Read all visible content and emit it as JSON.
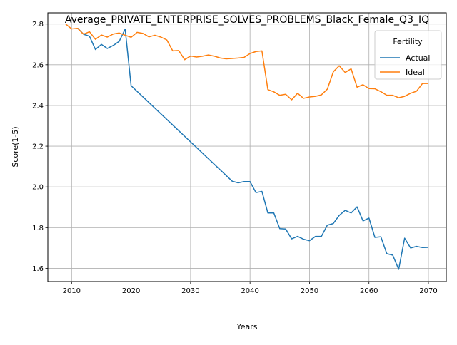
{
  "chart_data": {
    "type": "line",
    "title": "Average_PRIVATE_ENTERPRISE_SOLVES_PROBLEMS_Black_Female_Q3_IQ",
    "xlabel": "Years",
    "ylabel": "Score(1-5)",
    "xlim": [
      2006,
      2073
    ],
    "ylim": [
      1.535,
      2.855
    ],
    "xticks": [
      2010,
      2020,
      2030,
      2040,
      2050,
      2060,
      2070
    ],
    "yticks": [
      1.6,
      1.8,
      2.0,
      2.2,
      2.4,
      2.6,
      2.8
    ],
    "grid": true,
    "legend": {
      "title": "Fertility",
      "placement": "top-right"
    },
    "series": [
      {
        "name": "Actual",
        "color": "#1f77b4",
        "points": [
          [
            2011,
            2.78
          ],
          [
            2012,
            2.75
          ],
          [
            2013,
            2.74
          ],
          [
            2014,
            2.675
          ],
          [
            2015,
            2.7
          ],
          [
            2016,
            2.68
          ],
          [
            2017,
            2.695
          ],
          [
            2018,
            2.715
          ],
          [
            2019,
            2.775
          ],
          [
            2020,
            2.497
          ],
          [
            2037,
            2.028
          ],
          [
            2038,
            2.02
          ],
          [
            2039,
            2.026
          ],
          [
            2040,
            2.026
          ],
          [
            2041,
            1.972
          ],
          [
            2042,
            1.978
          ],
          [
            2043,
            1.872
          ],
          [
            2044,
            1.872
          ],
          [
            2045,
            1.795
          ],
          [
            2046,
            1.793
          ],
          [
            2047,
            1.745
          ],
          [
            2048,
            1.757
          ],
          [
            2049,
            1.743
          ],
          [
            2050,
            1.736
          ],
          [
            2051,
            1.757
          ],
          [
            2052,
            1.757
          ],
          [
            2053,
            1.812
          ],
          [
            2054,
            1.82
          ],
          [
            2055,
            1.86
          ],
          [
            2056,
            1.885
          ],
          [
            2057,
            1.872
          ],
          [
            2058,
            1.902
          ],
          [
            2059,
            1.833
          ],
          [
            2060,
            1.847
          ],
          [
            2061,
            1.752
          ],
          [
            2062,
            1.755
          ],
          [
            2063,
            1.672
          ],
          [
            2064,
            1.665
          ],
          [
            2065,
            1.595
          ],
          [
            2066,
            1.748
          ],
          [
            2067,
            1.7
          ],
          [
            2068,
            1.708
          ],
          [
            2069,
            1.702
          ],
          [
            2070,
            1.703
          ]
        ]
      },
      {
        "name": "Ideal",
        "color": "#ff7f0e",
        "points": [
          [
            2009,
            2.8
          ],
          [
            2010,
            2.776
          ],
          [
            2011,
            2.779
          ],
          [
            2012,
            2.75
          ],
          [
            2013,
            2.762
          ],
          [
            2014,
            2.725
          ],
          [
            2015,
            2.746
          ],
          [
            2016,
            2.736
          ],
          [
            2017,
            2.751
          ],
          [
            2018,
            2.756
          ],
          [
            2019,
            2.745
          ],
          [
            2020,
            2.735
          ],
          [
            2021,
            2.759
          ],
          [
            2022,
            2.754
          ],
          [
            2023,
            2.737
          ],
          [
            2024,
            2.745
          ],
          [
            2025,
            2.736
          ],
          [
            2026,
            2.722
          ],
          [
            2027,
            2.668
          ],
          [
            2028,
            2.67
          ],
          [
            2029,
            2.625
          ],
          [
            2030,
            2.643
          ],
          [
            2031,
            2.638
          ],
          [
            2032,
            2.642
          ],
          [
            2033,
            2.648
          ],
          [
            2034,
            2.642
          ],
          [
            2035,
            2.633
          ],
          [
            2036,
            2.629
          ],
          [
            2037,
            2.631
          ],
          [
            2038,
            2.633
          ],
          [
            2039,
            2.636
          ],
          [
            2040,
            2.655
          ],
          [
            2041,
            2.665
          ],
          [
            2042,
            2.668
          ],
          [
            2043,
            2.478
          ],
          [
            2044,
            2.467
          ],
          [
            2045,
            2.45
          ],
          [
            2046,
            2.455
          ],
          [
            2047,
            2.428
          ],
          [
            2048,
            2.46
          ],
          [
            2049,
            2.435
          ],
          [
            2050,
            2.442
          ],
          [
            2051,
            2.445
          ],
          [
            2052,
            2.452
          ],
          [
            2053,
            2.48
          ],
          [
            2054,
            2.565
          ],
          [
            2055,
            2.595
          ],
          [
            2056,
            2.562
          ],
          [
            2057,
            2.58
          ],
          [
            2058,
            2.49
          ],
          [
            2059,
            2.502
          ],
          [
            2060,
            2.483
          ],
          [
            2061,
            2.482
          ],
          [
            2062,
            2.468
          ],
          [
            2063,
            2.45
          ],
          [
            2064,
            2.45
          ],
          [
            2065,
            2.438
          ],
          [
            2066,
            2.445
          ],
          [
            2067,
            2.46
          ],
          [
            2068,
            2.47
          ],
          [
            2069,
            2.508
          ],
          [
            2070,
            2.508
          ]
        ]
      }
    ]
  }
}
